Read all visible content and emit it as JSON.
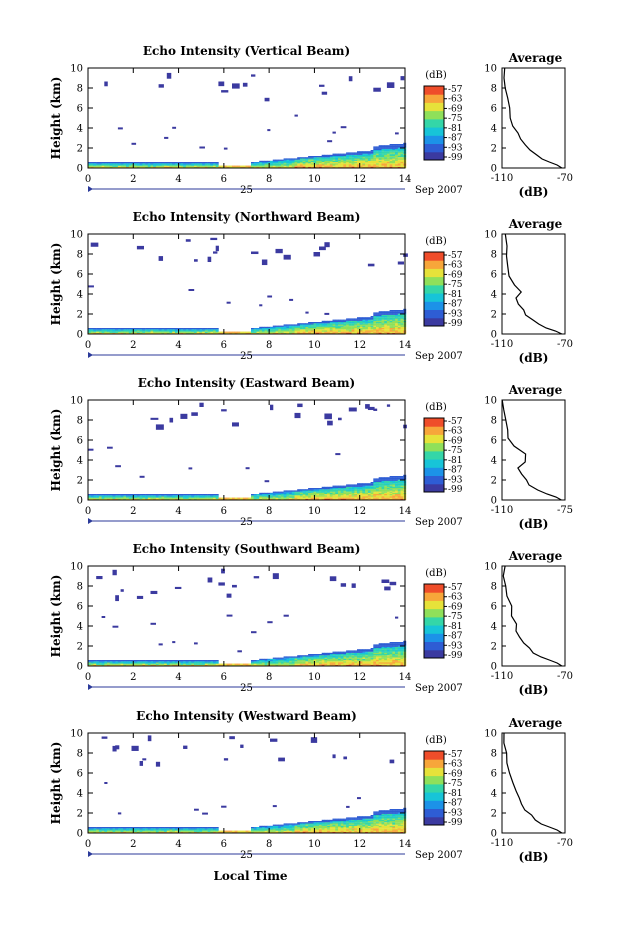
{
  "colors": [
    "#3b3aa0",
    "#2e5dd4",
    "#1c92e8",
    "#17c4d8",
    "#34d6a8",
    "#8fe05a",
    "#e6e23a",
    "#f7a63a",
    "#ef4d2a"
  ],
  "x_tick_labels": [
    "0",
    "2",
    "4",
    "6",
    "8",
    "10",
    "12",
    "14"
  ],
  "y_tick_labels": [
    "0",
    "2",
    "4",
    "6",
    "8",
    "10"
  ],
  "date_day": "25",
  "date_month_year": "Sep 2007",
  "x_axis_label": "Local Time",
  "y_axis_label": "Height (km)",
  "colorbar_unit": "(dB)",
  "colorbar_ticks": [
    "-57",
    "-63",
    "-69",
    "-75",
    "-81",
    "-87",
    "-93",
    "-99"
  ],
  "avg_title": "Average",
  "avg_xlabel": "(dB)",
  "chart_data": [
    {
      "type": "heatmap",
      "title": "Echo Intensity (Vertical Beam)",
      "xlabel": "",
      "ylabel": "Height (km)",
      "xlim": [
        0,
        14
      ],
      "ylim": [
        0,
        10
      ],
      "colorbar": {
        "label": "(dB)",
        "range": [
          -99,
          -57
        ]
      },
      "avg_ticks": [
        "-110",
        "-70"
      ],
      "average_profile": {
        "x_dB": [
          -72,
          -75,
          -80,
          -85,
          -88,
          -92,
          -95,
          -98,
          -100,
          -102,
          -104,
          -105,
          -106,
          -107,
          -108,
          -108
        ],
        "height_km": [
          0,
          0.3,
          0.6,
          0.9,
          1.3,
          1.8,
          2.3,
          2.9,
          3.5,
          4.2,
          5.0,
          6.0,
          7.0,
          8.0,
          9.0,
          10.0
        ]
      }
    },
    {
      "type": "heatmap",
      "title": "Echo Intensity (Northward Beam)",
      "xlabel": "",
      "ylabel": "Height (km)",
      "xlim": [
        0,
        14
      ],
      "ylim": [
        0,
        10
      ],
      "colorbar": {
        "label": "(dB)",
        "range": [
          -99,
          -57
        ]
      },
      "avg_ticks": [
        "-110",
        "-70"
      ],
      "average_profile": {
        "x_dB": [
          -72,
          -76,
          -82,
          -87,
          -90,
          -94,
          -97,
          -100,
          -101,
          -99,
          -103,
          -105,
          -106,
          -107,
          -108,
          -108
        ],
        "height_km": [
          0,
          0.3,
          0.6,
          1.0,
          1.4,
          1.9,
          2.4,
          3.0,
          3.6,
          4.2,
          4.9,
          5.8,
          6.8,
          7.8,
          8.8,
          10.0
        ]
      }
    },
    {
      "type": "heatmap",
      "title": "Echo Intensity (Eastward Beam)",
      "xlabel": "",
      "ylabel": "Height (km)",
      "xlim": [
        0,
        14
      ],
      "ylim": [
        0,
        10
      ],
      "colorbar": {
        "label": "(dB)",
        "range": [
          -99,
          -57
        ]
      },
      "avg_ticks": [
        "-110",
        "-75"
      ],
      "average_profile": {
        "x_dB": [
          -77,
          -80,
          -85,
          -90,
          -94,
          -97,
          -99,
          -101,
          -98,
          -96,
          -103,
          -106,
          -107,
          -108,
          -109,
          -109
        ],
        "height_km": [
          0,
          0.3,
          0.6,
          1.0,
          1.5,
          2.0,
          2.6,
          3.2,
          3.8,
          4.6,
          5.4,
          6.2,
          7.0,
          8.0,
          9.0,
          10.0
        ]
      }
    },
    {
      "type": "heatmap",
      "title": "Echo Intensity (Southward Beam)",
      "xlabel": "",
      "ylabel": "Height (km)",
      "xlim": [
        0,
        14
      ],
      "ylim": [
        0,
        10
      ],
      "colorbar": {
        "label": "(dB)",
        "range": [
          -99,
          -57
        ]
      },
      "avg_ticks": [
        "-110",
        "-70"
      ],
      "average_profile": {
        "x_dB": [
          -72,
          -75,
          -80,
          -85,
          -89,
          -92,
          -95,
          -98,
          -100,
          -102,
          -104,
          -105,
          -106,
          -107,
          -108,
          -108
        ],
        "height_km": [
          0,
          0.3,
          0.6,
          0.9,
          1.3,
          1.8,
          2.3,
          2.9,
          3.5,
          4.2,
          5.0,
          6.0,
          7.0,
          8.0,
          9.0,
          10.0
        ]
      }
    },
    {
      "type": "heatmap",
      "title": "Echo Intensity (Westward Beam)",
      "xlabel": "Local Time",
      "ylabel": "Height (km)",
      "xlim": [
        0,
        14
      ],
      "ylim": [
        0,
        10
      ],
      "colorbar": {
        "label": "(dB)",
        "range": [
          -99,
          -57
        ]
      },
      "avg_ticks": [
        "-110",
        "-70"
      ],
      "average_profile": {
        "x_dB": [
          -72,
          -75,
          -80,
          -85,
          -89,
          -92,
          -95,
          -98,
          -100,
          -102,
          -104,
          -105,
          -106,
          -107,
          -108,
          -108
        ],
        "height_km": [
          0,
          0.3,
          0.6,
          0.9,
          1.3,
          1.8,
          2.3,
          2.9,
          3.5,
          4.2,
          5.0,
          6.0,
          7.0,
          8.0,
          9.0,
          10.0
        ]
      }
    }
  ]
}
